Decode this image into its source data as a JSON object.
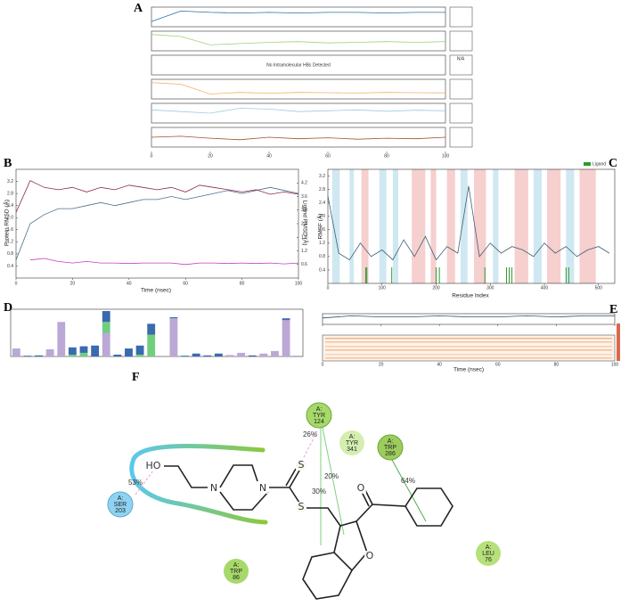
{
  "panel_labels": [
    "A",
    "B",
    "C",
    "D",
    "E",
    "F"
  ],
  "chart_data": [
    {
      "type": "small-multiples",
      "x": [
        0,
        10,
        20,
        30,
        40,
        50,
        60,
        70,
        80,
        90,
        100
      ],
      "xlim": [
        0,
        100
      ],
      "xticks": [
        0,
        20,
        40,
        60,
        80,
        100
      ],
      "rows": [
        {
          "color": "#2f6f9f",
          "ylim": [
            0,
            3
          ],
          "values": [
            0.8,
            2.4,
            2.2,
            2.1,
            2.2,
            2.1,
            2.2,
            2.2,
            2.1,
            2.2,
            2.2
          ]
        },
        {
          "color": "#9fd17f",
          "ylim": [
            0,
            3
          ],
          "values": [
            2.5,
            2.2,
            0.9,
            1.1,
            1.3,
            1.4,
            1.2,
            1.3,
            1.4,
            1.3,
            1.4
          ]
        },
        {
          "annotation": "No Intramolecular HBs Detected",
          "side_note": "N/A"
        },
        {
          "color": "#efb45f",
          "ylim": [
            200,
            320
          ],
          "values": [
            300,
            290,
            230,
            240,
            235,
            240,
            238,
            236,
            240,
            238,
            237
          ]
        },
        {
          "color": "#9fcbe0",
          "ylim": [
            0,
            120
          ],
          "values": [
            80,
            70,
            60,
            90,
            85,
            70,
            75,
            80,
            72,
            78,
            75
          ]
        },
        {
          "color": "#a0522d",
          "ylim": [
            40,
            80
          ],
          "values": [
            60,
            62,
            58,
            55,
            60,
            57,
            59,
            56,
            58,
            57,
            60
          ]
        }
      ]
    },
    {
      "type": "line",
      "xlabel": "Time (nsec)",
      "ylabel": "Protein RMSD (Å)",
      "y2label": "Ligand RMSD (Å)",
      "x": [
        0,
        5,
        10,
        15,
        20,
        25,
        30,
        35,
        40,
        45,
        50,
        55,
        60,
        65,
        70,
        75,
        80,
        85,
        90,
        95,
        100
      ],
      "xlim": [
        0,
        100
      ],
      "xticks": [
        0,
        20,
        40,
        60,
        80,
        100
      ],
      "ylim": [
        0,
        3.6
      ],
      "yticks": [
        0.4,
        0.8,
        1.2,
        1.6,
        {
          "value": 2,
          "label": "2.0"
        },
        2.4,
        2.8,
        3.2
      ],
      "y2lim": [
        0,
        4.8
      ],
      "y2ticks": [
        0.6,
        1.2,
        1.8,
        2.4,
        {
          "value": 3,
          "label": "3.0"
        },
        3.6,
        4.2
      ],
      "series": [
        {
          "color": "#4f6f8a",
          "values": [
            0.6,
            1.8,
            2.1,
            2.3,
            2.3,
            2.4,
            2.5,
            2.4,
            2.5,
            2.6,
            2.6,
            2.7,
            2.6,
            2.7,
            2.8,
            2.9,
            2.8,
            2.9,
            3.0,
            2.9,
            2.8
          ]
        },
        {
          "color": "#8b2a4e",
          "axis": "y2",
          "values": [
            2.9,
            4.3,
            4.0,
            3.9,
            4.0,
            3.8,
            4.0,
            3.9,
            4.1,
            4.0,
            3.9,
            4.0,
            3.8,
            4.1,
            4.0,
            3.9,
            3.8,
            3.9,
            3.7,
            3.8,
            3.7
          ]
        },
        {
          "color": "#c23cc0",
          "values": [
            null,
            0.6,
            0.65,
            0.55,
            0.5,
            0.55,
            0.5,
            0.5,
            0.48,
            0.5,
            0.5,
            0.5,
            0.45,
            0.5,
            0.5,
            0.48,
            0.5,
            0.48,
            0.5,
            0.47,
            0.5
          ]
        }
      ]
    },
    {
      "type": "line",
      "xlabel": "Residue Index",
      "ylabel": "RMSF (Å)",
      "x": [
        0,
        20,
        40,
        60,
        80,
        100,
        120,
        140,
        160,
        180,
        200,
        220,
        240,
        260,
        280,
        300,
        320,
        340,
        360,
        380,
        400,
        420,
        440,
        460,
        480,
        500,
        520
      ],
      "xlim": [
        0,
        530
      ],
      "xticks": [
        0,
        100,
        200,
        300,
        400,
        500
      ],
      "ylim": [
        0,
        3.4
      ],
      "yticks": [
        0.4,
        0.8,
        1.2,
        1.6,
        {
          "value": 2,
          "label": "2.0"
        },
        2.4,
        2.8,
        3.2
      ],
      "series": [
        {
          "color": "#3f5f73",
          "values": [
            2.6,
            0.9,
            0.7,
            1.2,
            0.8,
            1.0,
            0.7,
            1.3,
            0.8,
            1.4,
            0.7,
            1.1,
            0.9,
            2.9,
            0.8,
            1.2,
            0.9,
            1.1,
            1.0,
            0.8,
            1.2,
            0.9,
            1.1,
            0.8,
            1.0,
            1.1,
            0.9
          ]
        }
      ],
      "bands": [
        {
          "start": 8,
          "end": 22,
          "color": "#cfe8f2"
        },
        {
          "start": 40,
          "end": 48,
          "color": "#cfe8f2"
        },
        {
          "start": 62,
          "end": 75,
          "color": "#f6cfcf"
        },
        {
          "start": 95,
          "end": 108,
          "color": "#cfe8f2"
        },
        {
          "start": 120,
          "end": 130,
          "color": "#cfe8f2"
        },
        {
          "start": 155,
          "end": 180,
          "color": "#f6cfcf"
        },
        {
          "start": 190,
          "end": 200,
          "color": "#f6cfcf"
        },
        {
          "start": 220,
          "end": 235,
          "color": "#f6cfcf"
        },
        {
          "start": 245,
          "end": 258,
          "color": "#cfe8f2"
        },
        {
          "start": 270,
          "end": 292,
          "color": "#f6cfcf"
        },
        {
          "start": 305,
          "end": 315,
          "color": "#cfe8f2"
        },
        {
          "start": 345,
          "end": 370,
          "color": "#f6cfcf"
        },
        {
          "start": 380,
          "end": 395,
          "color": "#cfe8f2"
        },
        {
          "start": 405,
          "end": 430,
          "color": "#f6cfcf"
        },
        {
          "start": 440,
          "end": 455,
          "color": "#cfe8f2"
        },
        {
          "start": 465,
          "end": 495,
          "color": "#f6cfcf"
        }
      ],
      "contacts": {
        "name": "Ligand",
        "color": "#2e9a2e",
        "x": [
          70,
          72,
          118,
          200,
          206,
          290,
          330,
          335,
          340,
          440,
          445
        ]
      }
    },
    {
      "type": "bar",
      "ylim": [
        0,
        1.3
      ],
      "categories": [
        null,
        null,
        null,
        null,
        null,
        null,
        null,
        null,
        null,
        null,
        null,
        null,
        null,
        null,
        null,
        null,
        null,
        null,
        null,
        null,
        null,
        null,
        null,
        null,
        null,
        null
      ],
      "series": [
        {
          "color": "#bba8d6",
          "values": [
            0.22,
            0,
            0,
            0.2,
            0.95,
            0,
            0,
            0,
            0.65,
            0,
            0,
            0,
            0,
            0,
            1.05,
            0,
            0,
            0,
            0,
            0.04,
            0.1,
            0,
            0.08,
            0.15,
            1.0,
            0
          ]
        },
        {
          "color": "#6fcf7f",
          "values": [
            0,
            0,
            0,
            0,
            0,
            0.05,
            0.1,
            0,
            0.3,
            0,
            0,
            0.05,
            0.6,
            0,
            0,
            0,
            0,
            0,
            0,
            0,
            0,
            0,
            0,
            0,
            0,
            0
          ]
        },
        {
          "color": "#3a6aaf",
          "values": [
            0,
            0.02,
            0.03,
            0,
            0,
            0.2,
            0.18,
            0.3,
            0.3,
            0.05,
            0.22,
            0.25,
            0.3,
            0,
            0.03,
            0.02,
            0.08,
            0.03,
            0.08,
            0,
            0,
            0.03,
            0,
            0,
            0.05,
            0.01
          ]
        }
      ]
    },
    {
      "type": "line",
      "xlabel": "Time (nsec)",
      "x": [
        0,
        10,
        20,
        30,
        40,
        50,
        60,
        70,
        80,
        90,
        100
      ],
      "xlim": [
        0,
        100
      ],
      "xticks": [
        0,
        20,
        40,
        60,
        80,
        100
      ],
      "ylim": [
        0,
        10
      ],
      "series": [
        {
          "color": "#2a4f75",
          "values": [
            6,
            8,
            7,
            7,
            8,
            7,
            7,
            8,
            7,
            8,
            8
          ]
        }
      ]
    }
  ],
  "diagram": {
    "residues": [
      {
        "chain": "A:",
        "name": "TYR",
        "number": "124"
      },
      {
        "chain": "A:",
        "name": "TYR",
        "number": "341"
      },
      {
        "chain": "A:",
        "name": "TRP",
        "number": "286"
      },
      {
        "chain": "A:",
        "name": "SER",
        "number": "203"
      },
      {
        "chain": "A:",
        "name": "TRP",
        "number": "86"
      },
      {
        "chain": "A:",
        "name": "LEU",
        "number": "76"
      }
    ],
    "interactions": [
      "26%",
      "20%",
      "30%",
      "64%",
      "53%"
    ],
    "atoms": [
      "HO",
      "N",
      "N",
      "S",
      "S",
      "O",
      "O"
    ]
  }
}
